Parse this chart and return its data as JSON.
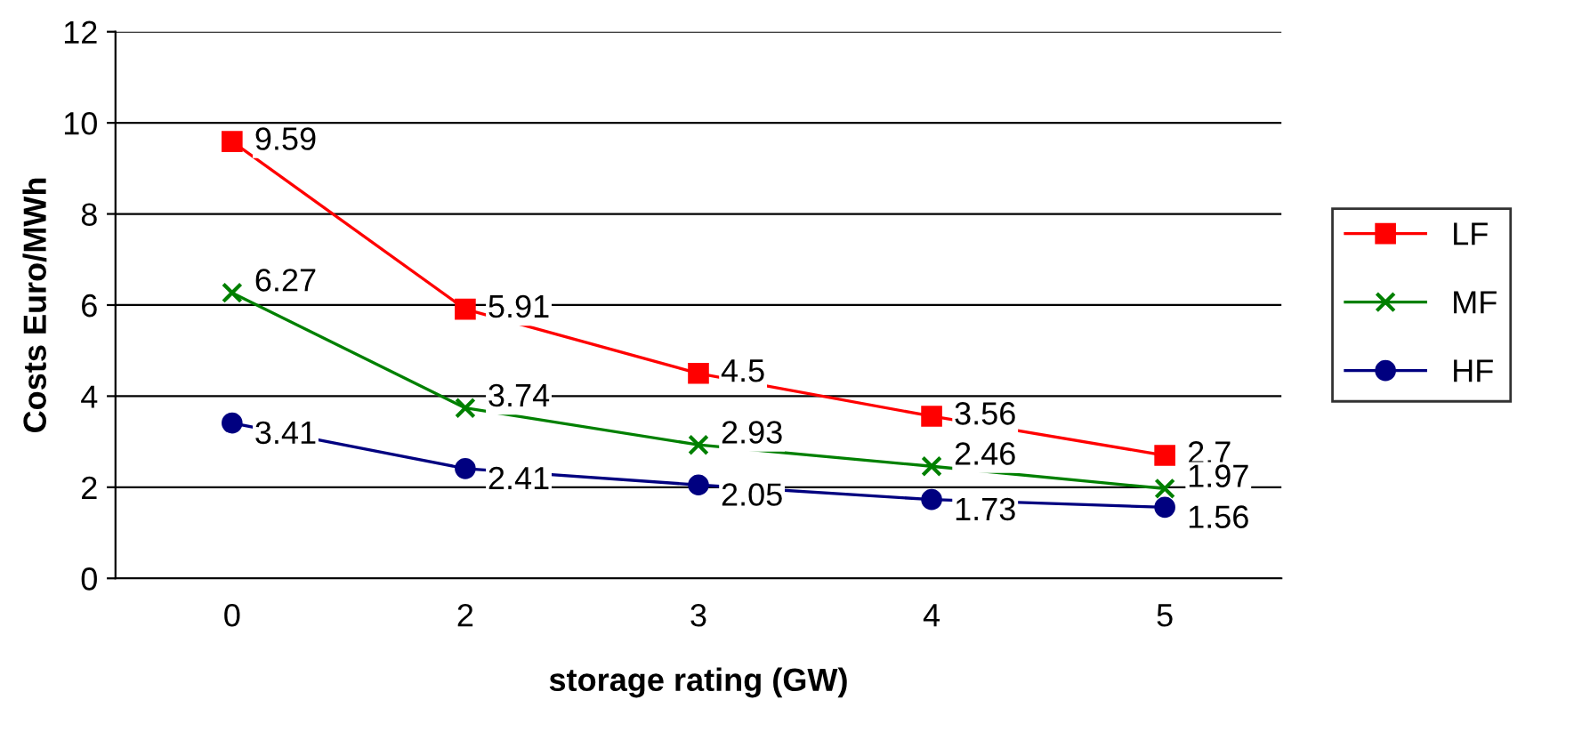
{
  "chart_data": {
    "type": "line",
    "xlabel": "storage rating (GW)",
    "ylabel": "Costs Euro/MWh",
    "categories": [
      "0",
      "2",
      "3",
      "4",
      "5"
    ],
    "series": [
      {
        "name": "LF",
        "color": "#ff0000",
        "marker": "square",
        "values": [
          9.59,
          5.91,
          4.5,
          3.56,
          2.7
        ]
      },
      {
        "name": "MF",
        "color": "#008000",
        "marker": "cross",
        "values": [
          6.27,
          3.74,
          2.93,
          2.46,
          1.97
        ]
      },
      {
        "name": "HF",
        "color": "#000080",
        "marker": "circle",
        "values": [
          3.41,
          2.41,
          2.05,
          1.73,
          1.56
        ]
      }
    ],
    "ylim": [
      0,
      12
    ],
    "yticks": [
      0,
      2,
      4,
      6,
      8,
      10,
      12
    ],
    "grid": "y",
    "legend": "right",
    "data_labels": true
  }
}
